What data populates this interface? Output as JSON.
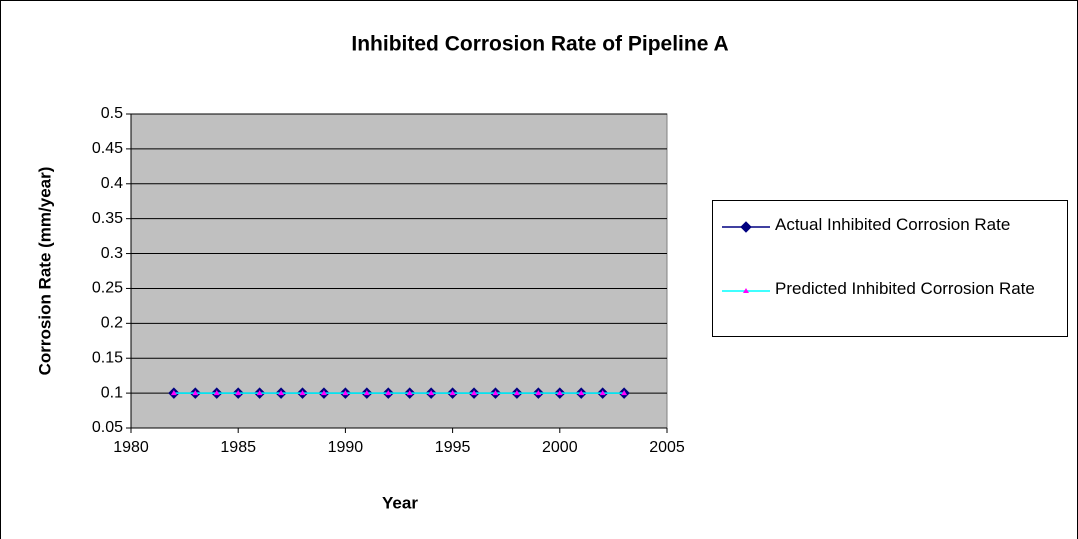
{
  "chart_data": {
    "type": "line",
    "title": "Inhibited Corrosion Rate of Pipeline A",
    "x_label": "Year",
    "y_label": "Corrosion Rate (mm/year)",
    "x": [
      1982,
      1983,
      1984,
      1985,
      1986,
      1987,
      1988,
      1989,
      1990,
      1991,
      1992,
      1993,
      1994,
      1995,
      1996,
      1997,
      1998,
      1999,
      2000,
      2001,
      2002,
      2003
    ],
    "series": [
      {
        "name": "Actual Inhibited Corrosion Rate",
        "color": "#000080",
        "marker": "diamond",
        "values": [
          0.1,
          0.1,
          0.1,
          0.1,
          0.1,
          0.1,
          0.1,
          0.1,
          0.1,
          0.1,
          0.1,
          0.1,
          0.1,
          0.1,
          0.1,
          0.1,
          0.1,
          0.1,
          0.1,
          0.1,
          0.1,
          0.1
        ]
      },
      {
        "name": "Predicted Inhibited Corrosion Rate",
        "color": "#00ffff",
        "marker_color": "#ff00ff",
        "marker": "triangle",
        "values": [
          0.1,
          0.1,
          0.1,
          0.1,
          0.1,
          0.1,
          0.1,
          0.1,
          0.1,
          0.1,
          0.1,
          0.1,
          0.1,
          0.1,
          0.1,
          0.1,
          0.1,
          0.1,
          0.1,
          0.1,
          0.1,
          0.1
        ]
      }
    ],
    "xlim": [
      1980,
      2005
    ],
    "xticks": [
      1980,
      1985,
      1990,
      1995,
      2000,
      2005
    ],
    "ylim": [
      0.05,
      0.5
    ],
    "yticks": [
      0.05,
      0.1,
      0.15,
      0.2,
      0.25,
      0.3,
      0.35,
      0.4,
      0.45,
      0.5
    ],
    "grid": true,
    "legend": "right",
    "plot_background": "#c0c0c0"
  }
}
